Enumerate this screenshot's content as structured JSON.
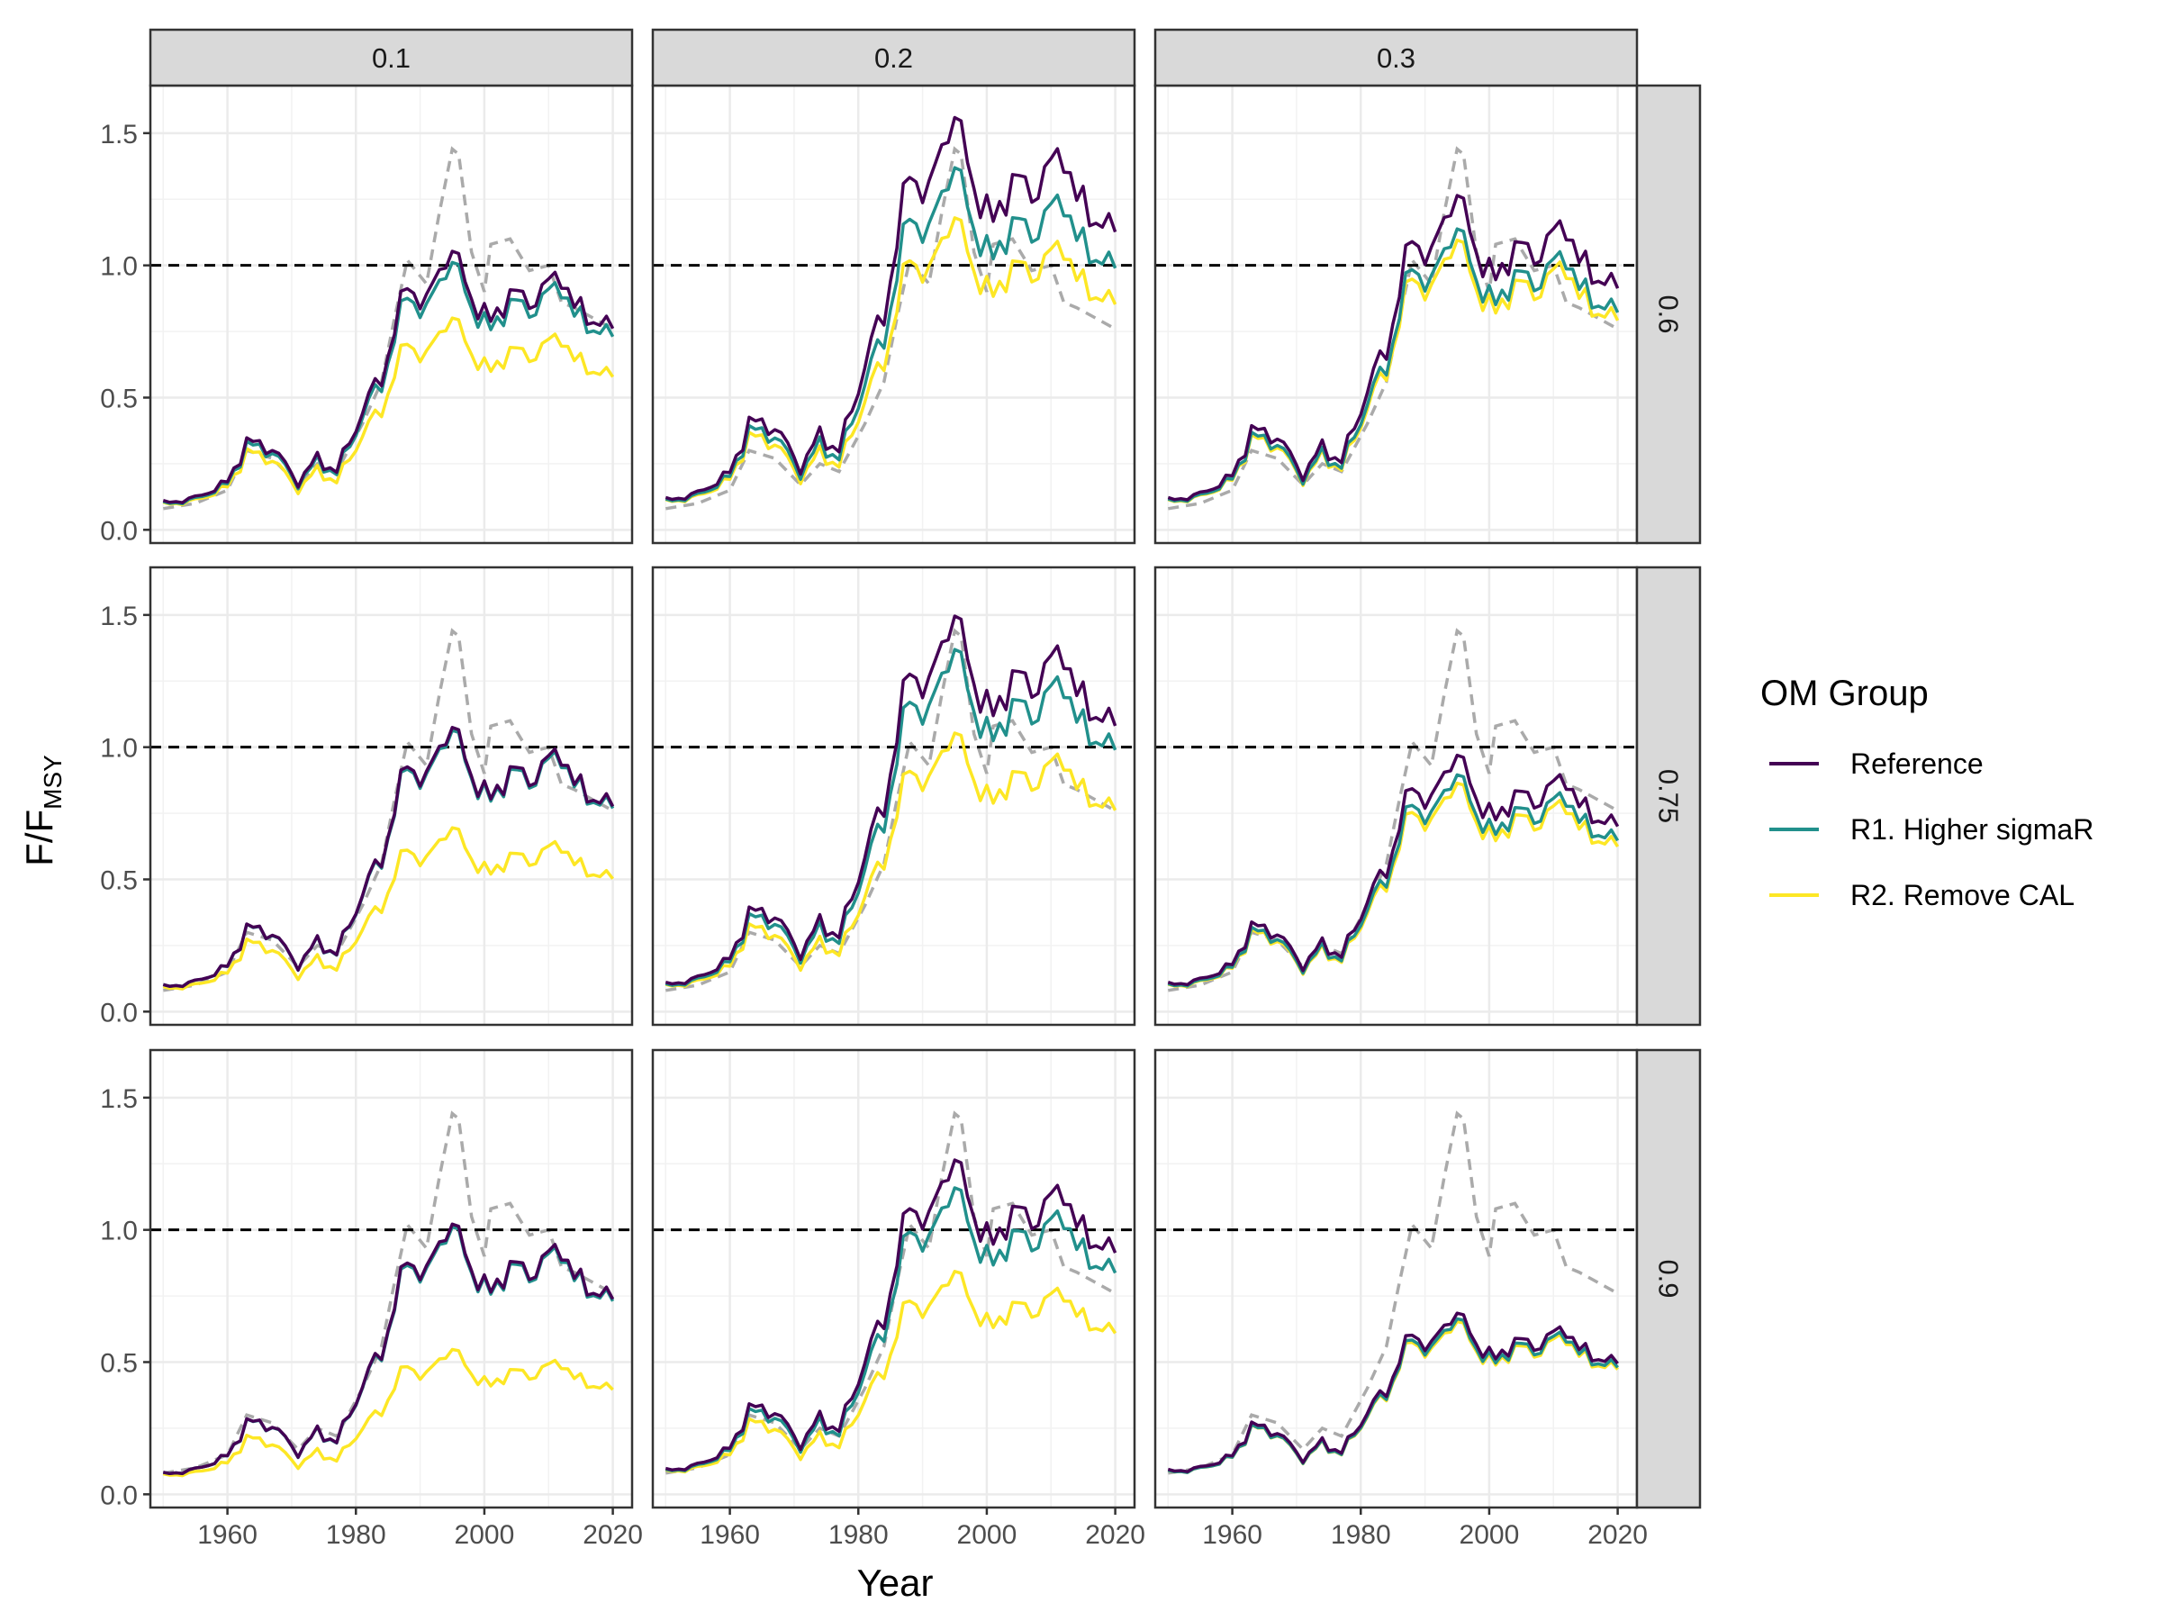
{
  "chart_data": {
    "type": "line",
    "title": "",
    "xlabel": "Year",
    "ylabel_main": "F/F",
    "ylabel_sub": "MSY",
    "xlim": [
      1948,
      2023
    ],
    "ylim": [
      -0.05,
      1.68
    ],
    "x_ticks": [
      1960,
      1980,
      2000,
      2020
    ],
    "y_ticks": [
      0.0,
      0.5,
      1.0,
      1.5
    ],
    "x_tick_labels": [
      "1960",
      "1980",
      "2000",
      "2020"
    ],
    "y_tick_labels": [
      "0.0",
      "0.5",
      "1.0",
      "1.5"
    ],
    "reference_line": 1.0,
    "grid": true,
    "facet_columns": [
      "0.1",
      "0.2",
      "0.3"
    ],
    "facet_rows": [
      "0.6",
      "0.75",
      "0.9"
    ],
    "legend": {
      "title": "OM Group",
      "placement": "right",
      "entries": [
        {
          "name": "Reference",
          "color": "#440154"
        },
        {
          "name": "R1. Higher sigmaR",
          "color": "#21908C"
        },
        {
          "name": "R2. Remove CAL",
          "color": "#FDE725"
        }
      ]
    },
    "comparison_style": {
      "color": "#AAAAAA",
      "dash": "dashed"
    },
    "base_years": [
      1950,
      1955,
      1960,
      1963,
      1967,
      1971,
      1974,
      1977,
      1981,
      1984,
      1988,
      1991,
      1993,
      1995,
      1998,
      2001,
      2004,
      2007,
      2010,
      2012,
      2014,
      2017,
      2020
    ],
    "base_profile": [
      0.1,
      0.12,
      0.18,
      0.33,
      0.31,
      0.18,
      0.27,
      0.22,
      0.45,
      0.58,
      0.93,
      0.85,
      0.99,
      1.06,
      0.88,
      0.78,
      0.9,
      0.86,
      0.93,
      0.97,
      0.84,
      0.8,
      0.75
    ],
    "comparison": {
      "years": [
        1950,
        1955,
        1960,
        1963,
        1967,
        1971,
        1974,
        1977,
        1981,
        1984,
        1986,
        1988,
        1991,
        1993,
        1995,
        1996,
        1998,
        2000,
        2001,
        2004,
        2007,
        2010,
        2012,
        2014,
        2017,
        2020
      ],
      "values": [
        0.08,
        0.1,
        0.15,
        0.3,
        0.27,
        0.17,
        0.25,
        0.22,
        0.4,
        0.56,
        0.8,
        1.02,
        0.93,
        1.2,
        1.44,
        1.42,
        1.05,
        0.9,
        1.08,
        1.1,
        0.98,
        1.0,
        0.86,
        0.84,
        0.8,
        0.76
      ]
    },
    "panels": [
      {
        "row": "0.6",
        "col": "0.1",
        "series_scale": {
          "Reference": [
            1.0,
            1.0
          ],
          "R1. Higher sigmaR": [
            0.96,
            0.96
          ],
          "R2. Remove CAL": [
            0.94,
            0.76
          ]
        }
      },
      {
        "row": "0.6",
        "col": "0.2",
        "series_scale": {
          "Reference": [
            1.1,
            1.48
          ],
          "R1. Higher sigmaR": [
            1.05,
            1.3
          ],
          "R2. Remove CAL": [
            1.03,
            1.12
          ]
        }
      },
      {
        "row": "0.6",
        "col": "0.3",
        "series_scale": {
          "Reference": [
            1.1,
            1.2
          ],
          "R1. Higher sigmaR": [
            1.05,
            1.08
          ],
          "R2. Remove CAL": [
            1.03,
            1.04
          ]
        }
      },
      {
        "row": "0.75",
        "col": "0.1",
        "series_scale": {
          "Reference": [
            0.92,
            1.02
          ],
          "R1. Higher sigmaR": [
            0.92,
            1.01
          ],
          "R2. Remove CAL": [
            0.85,
            0.66
          ]
        }
      },
      {
        "row": "0.75",
        "col": "0.2",
        "series_scale": {
          "Reference": [
            1.0,
            1.42
          ],
          "R1. Higher sigmaR": [
            0.95,
            1.3
          ],
          "R2. Remove CAL": [
            0.93,
            1.0
          ]
        }
      },
      {
        "row": "0.75",
        "col": "0.3",
        "series_scale": {
          "Reference": [
            1.0,
            0.92
          ],
          "R1. Higher sigmaR": [
            0.95,
            0.85
          ],
          "R2. Remove CAL": [
            0.93,
            0.82
          ]
        }
      },
      {
        "row": "0.9",
        "col": "0.1",
        "series_scale": {
          "Reference": [
            0.75,
            0.97
          ],
          "R1. Higher sigmaR": [
            0.75,
            0.96
          ],
          "R2. Remove CAL": [
            0.7,
            0.52
          ]
        }
      },
      {
        "row": "0.9",
        "col": "0.2",
        "series_scale": {
          "Reference": [
            0.88,
            1.2
          ],
          "R1. Higher sigmaR": [
            0.85,
            1.1
          ],
          "R2. Remove CAL": [
            0.83,
            0.8
          ]
        }
      },
      {
        "row": "0.9",
        "col": "0.3",
        "series_scale": {
          "Reference": [
            0.85,
            0.65
          ],
          "R1. Higher sigmaR": [
            0.82,
            0.63
          ],
          "R2. Remove CAL": [
            0.82,
            0.62
          ]
        }
      }
    ]
  }
}
